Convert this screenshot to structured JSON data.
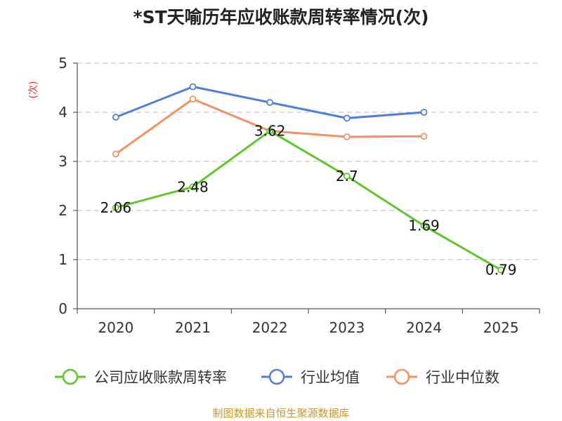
{
  "chart_data": {
    "type": "line",
    "title": "*ST天喻历年应收账款周转率情况(次)",
    "ylabel": "(次)",
    "xlabel": "",
    "categories": [
      "2020",
      "2021",
      "2022",
      "2023",
      "2024",
      "2025"
    ],
    "ylim": [
      0,
      5
    ],
    "yticks": [
      0,
      1,
      2,
      3,
      4,
      5
    ],
    "grid": true,
    "legend_position": "bottom",
    "series": [
      {
        "name": "公司应收账款周转率",
        "color": "#5cc72a",
        "values": [
          2.06,
          2.48,
          3.62,
          2.7,
          1.69,
          0.79
        ],
        "labels": [
          "2.06",
          "2.48",
          "3.62",
          "2.7",
          "1.69",
          "0.79"
        ]
      },
      {
        "name": "行业均值",
        "color": "#4f7fdc",
        "values": [
          3.9,
          4.52,
          4.2,
          3.88,
          4.0,
          null
        ]
      },
      {
        "name": "行业中位数",
        "color": "#f59062",
        "values": [
          3.15,
          4.27,
          3.62,
          3.5,
          3.51,
          null
        ]
      }
    ],
    "source": "制图数据来自恒生聚源数据库"
  }
}
